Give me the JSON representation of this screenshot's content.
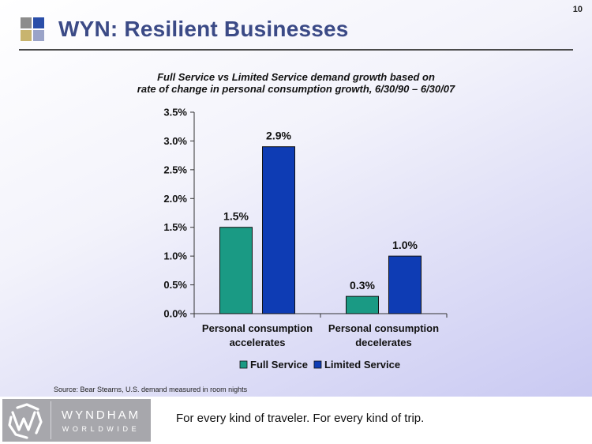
{
  "page_number": "10",
  "title": "WYN:  Resilient Businesses",
  "subtitle_lines": [
    "Full Service vs Limited Service demand growth based on",
    "rate of change in personal consumption growth, 6/30/90 – 6/30/07"
  ],
  "source": "Source: Bear Stearns, U.S. demand measured in room nights",
  "footer": {
    "brand_name": "WYNDHAM",
    "brand_sub": "WORLDWIDE",
    "tagline": "For every kind of traveler. For every kind of trip."
  },
  "colors": {
    "title": "#3b4a86",
    "full_service": "#1a9a84",
    "limited_service": "#0e3cb4",
    "logo_squares": [
      "#8c8c8c",
      "#2a4ea8",
      "#c8b46e",
      "#9aa3c8"
    ]
  },
  "icons": {
    "brand_mark": "wyndham-w-icon",
    "title_mark": "four-squares-icon"
  },
  "chart_data": {
    "type": "bar",
    "categories": [
      [
        "Personal consumption",
        "accelerates"
      ],
      [
        "Personal consumption",
        "decelerates"
      ]
    ],
    "series": [
      {
        "name": "Full Service",
        "values": [
          1.5,
          0.3
        ],
        "labels": [
          "1.5%",
          "0.3%"
        ]
      },
      {
        "name": "Limited Service",
        "values": [
          2.9,
          1.0
        ],
        "labels": [
          "2.9%",
          "1.0%"
        ]
      }
    ],
    "ylim": [
      0,
      3.5
    ],
    "yticks": [
      0,
      0.5,
      1.0,
      1.5,
      2.0,
      2.5,
      3.0,
      3.5
    ],
    "ytick_labels": [
      "0.0%",
      "0.5%",
      "1.0%",
      "1.5%",
      "2.0%",
      "2.5%",
      "3.0%",
      "3.5%"
    ],
    "grid": false,
    "legend_position": "bottom"
  }
}
